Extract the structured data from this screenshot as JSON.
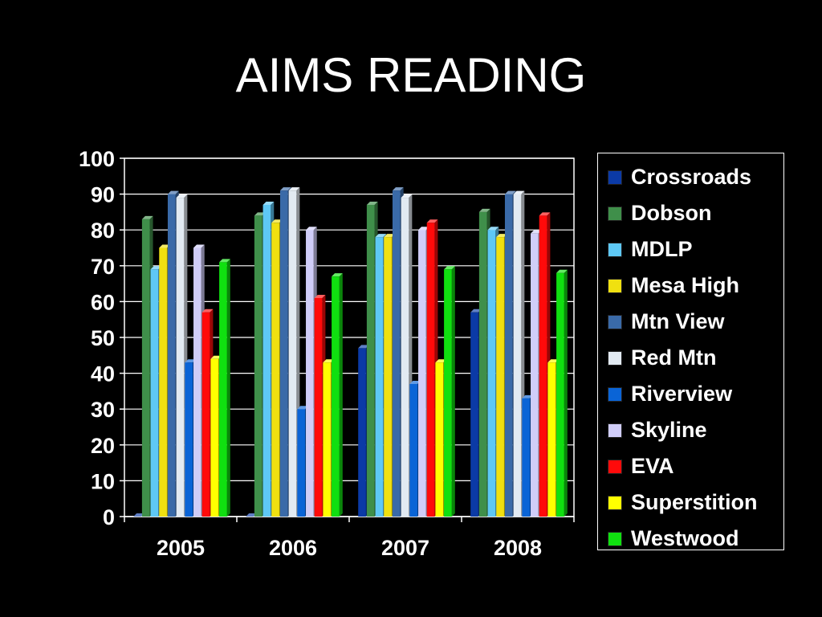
{
  "chart_data": {
    "type": "bar",
    "title": "AIMS READING",
    "categories": [
      "2005",
      "2006",
      "2007",
      "2008"
    ],
    "ylim": [
      0,
      100
    ],
    "yticks": [
      "0",
      "10",
      "20",
      "30",
      "40",
      "50",
      "60",
      "70",
      "80",
      "90",
      "100"
    ],
    "grid": true,
    "legend_position": "right",
    "series": [
      {
        "name": "Crossroads",
        "color": "#0b3aa6",
        "values": [
          0,
          0,
          47,
          57
        ]
      },
      {
        "name": "Dobson",
        "color": "#3f8f4a",
        "values": [
          83,
          84,
          87,
          85
        ]
      },
      {
        "name": "MDLP",
        "color": "#5ec8f5",
        "values": [
          69,
          87,
          78,
          80
        ]
      },
      {
        "name": "Mesa High",
        "color": "#f0e010",
        "values": [
          75,
          82,
          78,
          78
        ]
      },
      {
        "name": "Mtn View",
        "color": "#3a6aa8",
        "values": [
          90,
          91,
          91,
          90
        ]
      },
      {
        "name": "Red Mtn",
        "color": "#e2eaf2",
        "values": [
          89,
          91,
          89,
          90
        ]
      },
      {
        "name": "Riverview",
        "color": "#0a64d6",
        "values": [
          43,
          30,
          37,
          33
        ]
      },
      {
        "name": "Skyline",
        "color": "#d0cdf8",
        "values": [
          75,
          80,
          80,
          79
        ]
      },
      {
        "name": "EVA",
        "color": "#ff0a0a",
        "values": [
          57,
          61,
          82,
          84
        ]
      },
      {
        "name": "Superstition",
        "color": "#ffff00",
        "values": [
          44,
          43,
          43,
          43
        ]
      },
      {
        "name": "Westwood",
        "color": "#10e010",
        "values": [
          71,
          67,
          69,
          68
        ]
      }
    ]
  }
}
